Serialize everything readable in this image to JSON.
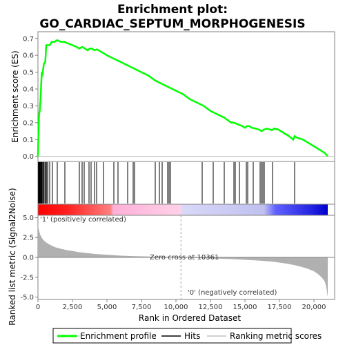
{
  "chart_data": {
    "type": "line",
    "title_line1": "Enrichment plot:",
    "title_line2": "GO_CARDIAC_SEPTUM_MORPHOGENESIS",
    "es_ylabel": "Enrichment score (ES)",
    "metric_ylabel": "Ranked list metric (Signal2Noise)",
    "xlabel": "Rank in Ordered Dataset",
    "xlim": [
      0,
      21500
    ],
    "es_ylim": [
      -0.03,
      0.74
    ],
    "metric_ylim": [
      -5.3,
      5.3
    ],
    "x_ticks": [
      0,
      2500,
      5000,
      7500,
      10000,
      12500,
      15000,
      17500,
      20000
    ],
    "x_tick_labels": [
      "0",
      "2,500",
      "5,000",
      "7,500",
      "10,000",
      "12,500",
      "15,000",
      "17,500",
      "20,000"
    ],
    "es_ticks": [
      0.0,
      0.1,
      0.2,
      0.3,
      0.4,
      0.5,
      0.6,
      0.7
    ],
    "es_tick_labels": [
      "0.0",
      "0.1",
      "0.2",
      "0.3",
      "0.4",
      "0.5",
      "0.6",
      "0.7"
    ],
    "metric_ticks": [
      5.0,
      2.5,
      0.0,
      -2.5,
      -5.0
    ],
    "metric_tick_labels": [
      "5.0",
      "2.5",
      "0.0",
      "-2.5",
      "-5.0"
    ],
    "positive_label": "'1' (positively correlated)",
    "negative_label": "'0' (negatively correlated)",
    "zero_cross_label": "Zero cross at 10361",
    "zero_cross": 10361,
    "n_genes": 21000,
    "es_curve": {
      "x": [
        0,
        30,
        80,
        130,
        180,
        230,
        280,
        330,
        430,
        530,
        600,
        700,
        850,
        1000,
        1200,
        1400,
        1650,
        1900,
        2200,
        2500,
        2800,
        3000,
        3200,
        3400,
        3600,
        3750,
        3900,
        4100,
        4250,
        4400,
        4600,
        4800,
        5000,
        5500,
        6000,
        6500,
        7000,
        7500,
        8000,
        8500,
        9000,
        9500,
        10000,
        10500,
        11000,
        11500,
        12000,
        12500,
        13000,
        13500,
        14000,
        14200,
        14500,
        14800,
        15000,
        15150,
        15300,
        15500,
        15800,
        16000,
        16200,
        16400,
        16600,
        16800,
        16950,
        17100,
        17400,
        17800,
        18200,
        18500,
        18600,
        18800,
        19200,
        19600,
        20000,
        20400,
        20800,
        21000
      ],
      "y": [
        0.0,
        0.1,
        0.25,
        0.27,
        0.33,
        0.42,
        0.5,
        0.49,
        0.55,
        0.56,
        0.66,
        0.66,
        0.66,
        0.68,
        0.68,
        0.69,
        0.68,
        0.68,
        0.67,
        0.66,
        0.65,
        0.64,
        0.65,
        0.64,
        0.63,
        0.64,
        0.64,
        0.63,
        0.635,
        0.63,
        0.62,
        0.61,
        0.6,
        0.58,
        0.56,
        0.54,
        0.52,
        0.5,
        0.48,
        0.45,
        0.43,
        0.41,
        0.39,
        0.37,
        0.34,
        0.32,
        0.3,
        0.27,
        0.25,
        0.23,
        0.2,
        0.2,
        0.19,
        0.18,
        0.17,
        0.18,
        0.18,
        0.17,
        0.165,
        0.16,
        0.15,
        0.16,
        0.165,
        0.16,
        0.155,
        0.165,
        0.16,
        0.14,
        0.12,
        0.1,
        0.12,
        0.11,
        0.1,
        0.08,
        0.06,
        0.04,
        0.02,
        0.0
      ]
    },
    "hits": [
      30,
      60,
      100,
      140,
      180,
      220,
      260,
      300,
      360,
      420,
      500,
      560,
      640,
      720,
      850,
      1050,
      1400,
      1950,
      3000,
      3200,
      3350,
      3700,
      3850,
      4100,
      4250,
      4750,
      5500,
      5800,
      6500,
      6900,
      7000,
      8500,
      8800,
      9000,
      9400,
      9500,
      9600,
      11900,
      12700,
      13500,
      14200,
      14300,
      14600,
      15100,
      15200,
      15600,
      16100,
      16200,
      16300,
      16400,
      17000,
      18600
    ],
    "metric_curve": {
      "x": [
        0,
        50,
        150,
        300,
        500,
        800,
        1200,
        1600,
        2000,
        2500,
        3000,
        3500,
        4000,
        5000,
        6000,
        7000,
        8000,
        9000,
        10000,
        10361,
        11000,
        12000,
        13000,
        14000,
        15000,
        16000,
        16500,
        17000,
        17500,
        18000,
        18500,
        19000,
        19500,
        20000,
        20300,
        20600,
        20800,
        20900,
        21000
      ],
      "y": [
        4.2,
        3.6,
        2.9,
        2.4,
        2.0,
        1.65,
        1.3,
        1.1,
        0.95,
        0.8,
        0.65,
        0.55,
        0.45,
        0.32,
        0.22,
        0.15,
        0.1,
        0.06,
        0.02,
        0.0,
        -0.04,
        -0.1,
        -0.16,
        -0.22,
        -0.3,
        -0.4,
        -0.47,
        -0.55,
        -0.65,
        -0.78,
        -0.95,
        -1.15,
        -1.4,
        -1.75,
        -2.1,
        -2.6,
        -3.1,
        -3.8,
        -5.0
      ]
    },
    "colors": {
      "es_line": "#00ff00",
      "hit": "#000000",
      "metric_fill": "#b0b0b0",
      "zero_line": "#c0c0c0",
      "positive_text": "#cc0000",
      "negative_text": "#0000cc",
      "bar_red": "#ff0000",
      "bar_white": "#ffffff",
      "bar_blue": "#0000ff"
    },
    "legend": {
      "items": [
        {
          "label": "Enrichment profile",
          "kind": "line",
          "color": "#00ff00"
        },
        {
          "label": "Hits",
          "kind": "tick",
          "color": "#000000"
        },
        {
          "label": "Ranking metric scores",
          "kind": "line",
          "color": "#c0c0c0"
        }
      ]
    }
  }
}
